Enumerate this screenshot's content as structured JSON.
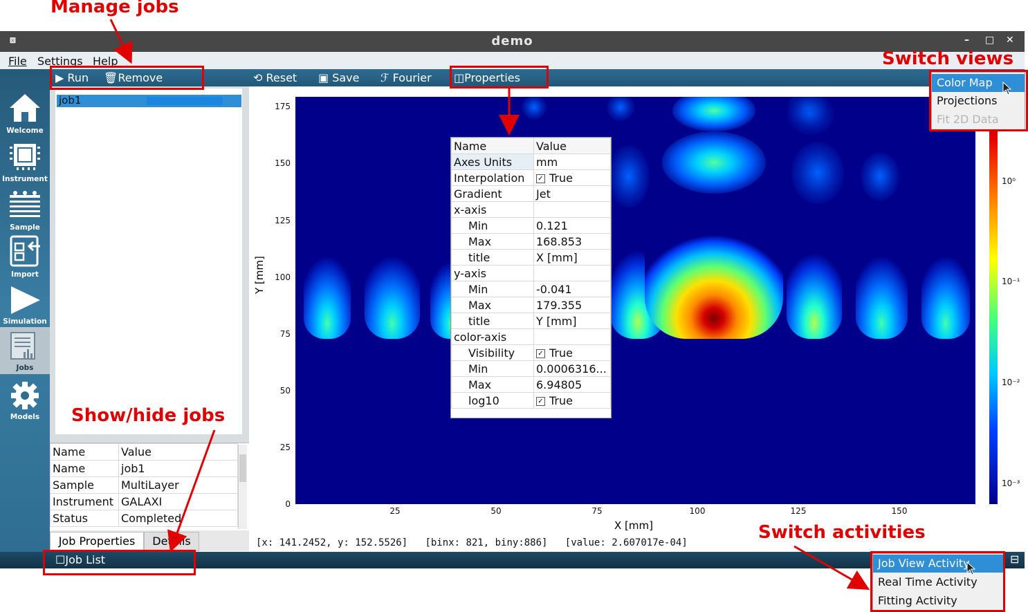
{
  "window": {
    "title": "demo",
    "minimize": "–",
    "maximize": "□",
    "close": "✕"
  },
  "menu": {
    "file": "File",
    "settings": "Settings",
    "help": "Help"
  },
  "sidebar": {
    "items": [
      {
        "label": "Welcome",
        "icon": "home-icon"
      },
      {
        "label": "Instrument",
        "icon": "chip-icon"
      },
      {
        "label": "Sample",
        "icon": "layers-icon"
      },
      {
        "label": "Import",
        "icon": "import-icon"
      },
      {
        "label": "Simulation",
        "icon": "play-icon"
      },
      {
        "label": "Jobs",
        "icon": "jobs-icon",
        "active": true
      },
      {
        "label": "Models",
        "icon": "gear-icon"
      }
    ]
  },
  "job_toolbar": {
    "run": "Run",
    "remove": "Remove"
  },
  "main_toolbar": {
    "reset": "Reset",
    "save": "Save",
    "fourier": "Fourier",
    "properties": "Properties"
  },
  "job_list": {
    "items": [
      "job1"
    ]
  },
  "job_properties": {
    "header": [
      "Name",
      "Value"
    ],
    "rows": [
      [
        "Name",
        "job1"
      ],
      [
        "Sample",
        "MultiLayer"
      ],
      [
        "Instrument",
        "GALAXI"
      ],
      [
        "Status",
        "Completed"
      ]
    ]
  },
  "tabs": {
    "job_properties": "Job Properties",
    "details": "Details"
  },
  "bottom": {
    "job_list": "Job List"
  },
  "plot": {
    "xlabel": "X [mm]",
    "ylabel": "Y [mm]",
    "xticks": [
      "25",
      "50",
      "75",
      "100",
      "125",
      "150"
    ],
    "yticks": [
      "0",
      "25",
      "50",
      "75",
      "100",
      "125",
      "150",
      "175"
    ],
    "colorbar_ticks": [
      "10⁰",
      "10⁻¹",
      "10⁻²",
      "10⁻³"
    ],
    "status": {
      "pos": "[x: 141.2452, y: 152.5526]",
      "bins": "[binx: 821, biny:886]",
      "value": "[value: 2.607017e-04]"
    }
  },
  "chart_data": {
    "type": "heatmap",
    "xlabel": "X [mm]",
    "ylabel": "Y [mm]",
    "xlim": [
      0.121,
      168.853
    ],
    "ylim": [
      -0.041,
      179.355
    ],
    "zlim": [
      0.0006316,
      6.94805
    ],
    "log_scale": true,
    "gradient": "Jet"
  },
  "properties_popup": {
    "header": [
      "Name",
      "Value"
    ],
    "rows": [
      {
        "name": "Axes Units",
        "value": "mm",
        "indent": 0
      },
      {
        "name": "Interpolation",
        "value": "True",
        "indent": 0,
        "check": true
      },
      {
        "name": "Gradient",
        "value": "Jet",
        "indent": 0
      },
      {
        "name": "x-axis",
        "value": "",
        "indent": 0
      },
      {
        "name": "Min",
        "value": "0.121",
        "indent": 1
      },
      {
        "name": "Max",
        "value": "168.853",
        "indent": 1
      },
      {
        "name": "title",
        "value": "X [mm]",
        "indent": 1
      },
      {
        "name": "y-axis",
        "value": "",
        "indent": 0
      },
      {
        "name": "Min",
        "value": "-0.041",
        "indent": 1
      },
      {
        "name": "Max",
        "value": "179.355",
        "indent": 1
      },
      {
        "name": "title",
        "value": "Y [mm]",
        "indent": 1
      },
      {
        "name": "color-axis",
        "value": "",
        "indent": 0
      },
      {
        "name": "Visibility",
        "value": "True",
        "indent": 1,
        "check": true
      },
      {
        "name": "Min",
        "value": "0.0006316...",
        "indent": 1
      },
      {
        "name": "Max",
        "value": "6.94805",
        "indent": 1
      },
      {
        "name": "log10",
        "value": "True",
        "indent": 1,
        "check": true
      }
    ]
  },
  "view_menu": {
    "items": [
      "Color Map",
      "Projections",
      "Fit 2D Data"
    ]
  },
  "activity_menu": {
    "items": [
      "Job View Activity",
      "Real Time Activity",
      "Fitting Activity"
    ]
  },
  "annotations": {
    "manage_jobs": "Manage jobs",
    "switch_views": "Switch views",
    "show_hide_jobs": "Show/hide jobs",
    "switch_activities": "Switch activities"
  },
  "colors": {
    "annotation": "#e00000",
    "selection": "#2f8fd6",
    "toolbar": "#2e6b91"
  }
}
